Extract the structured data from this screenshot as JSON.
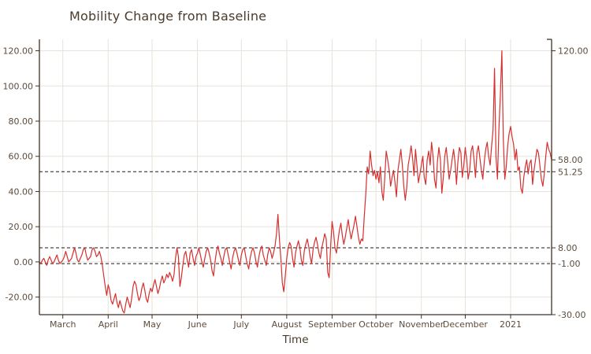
{
  "title": "Mobility Change from Baseline",
  "x_axis": {
    "label": "Time",
    "month_labels": [
      "March",
      "April",
      "May",
      "June",
      "July",
      "August",
      "September",
      "October",
      "November",
      "December",
      "2021"
    ]
  },
  "y_axis_left": {
    "ticks": [
      120,
      100,
      80,
      60,
      40,
      20,
      0,
      -20
    ],
    "labels": [
      "120.00",
      "100.00",
      "80.00",
      "60.00",
      "40.00",
      "20.00",
      "0.00",
      "-20.00"
    ]
  },
  "y_axis_right": {
    "annotations": [
      {
        "value": 120,
        "label": "120.00"
      },
      {
        "value": 58,
        "label": "58.00"
      },
      {
        "value": 51.25,
        "label": "51.25"
      },
      {
        "value": 8,
        "label": "8.00"
      },
      {
        "value": -1,
        "label": "-1.00"
      },
      {
        "value": -30,
        "label": "-30.00"
      }
    ]
  },
  "reference_lines": {
    "values": [
      51.25,
      8,
      -1
    ],
    "style": "dashed"
  },
  "colors": {
    "line": "#d62f2f",
    "grid": "#e7e2da",
    "axis": "#3e3226",
    "tick_text": "#5d4c3b",
    "title_text": "#4a3b2c",
    "dashed": "#1a1a1a"
  },
  "chart_data": {
    "type": "line",
    "title": "Mobility Change from Baseline",
    "xlabel": "Time",
    "ylabel": "",
    "x_start_date": "2020-02-14",
    "frequency": "daily",
    "ylim": [
      -30,
      126.5
    ],
    "grid": true,
    "legend": "none",
    "month_start_day_indices": [
      16,
      47,
      77,
      108,
      138,
      169,
      200,
      230,
      261,
      291,
      322
    ],
    "dashed_line_values": [
      51.25,
      8,
      -1
    ],
    "last_value": 58,
    "series": [
      {
        "name": "mobility_change_from_baseline",
        "values": [
          0,
          -1,
          1,
          2,
          0,
          -2,
          1,
          3,
          1,
          -1,
          0,
          2,
          4,
          1,
          -1,
          0,
          1,
          3,
          6,
          3,
          0,
          1,
          2,
          5,
          8,
          5,
          1,
          0,
          2,
          4,
          7,
          8,
          4,
          1,
          2,
          3,
          7,
          8,
          6,
          3,
          4,
          6,
          3,
          -2,
          -8,
          -14,
          -19,
          -13,
          -16,
          -22,
          -24,
          -21,
          -18,
          -23,
          -26,
          -22,
          -25,
          -28,
          -29,
          -24,
          -20,
          -23,
          -26,
          -21,
          -14,
          -11,
          -13,
          -18,
          -22,
          -20,
          -15,
          -12,
          -16,
          -21,
          -23,
          -18,
          -15,
          -17,
          -13,
          -10,
          -14,
          -18,
          -15,
          -11,
          -8,
          -12,
          -10,
          -7,
          -9,
          -6,
          -8,
          -11,
          -7,
          2,
          8,
          3,
          -14,
          -9,
          -2,
          4,
          6,
          1,
          -3,
          5,
          7,
          2,
          -2,
          3,
          5,
          8,
          4,
          0,
          -3,
          2,
          6,
          8,
          5,
          1,
          -5,
          -8,
          0,
          6,
          9,
          5,
          2,
          -2,
          3,
          7,
          8,
          4,
          0,
          -4,
          2,
          6,
          8,
          5,
          1,
          -2,
          4,
          7,
          8,
          3,
          -1,
          -4,
          2,
          6,
          8,
          5,
          0,
          -3,
          3,
          7,
          9,
          4,
          1,
          -2,
          4,
          8,
          6,
          2,
          5,
          9,
          16,
          27,
          13,
          2,
          -12,
          -17,
          -8,
          2,
          8,
          11,
          9,
          2,
          -3,
          5,
          9,
          12,
          8,
          1,
          -2,
          6,
          10,
          13,
          9,
          3,
          -1,
          7,
          11,
          14,
          10,
          5,
          2,
          8,
          12,
          16,
          13,
          -6,
          -9,
          9,
          23,
          17,
          8,
          5,
          12,
          18,
          22,
          15,
          10,
          14,
          19,
          24,
          18,
          13,
          17,
          21,
          26,
          20,
          14,
          10,
          13,
          12,
          26,
          38,
          54,
          50,
          63,
          55,
          49,
          52,
          47,
          51,
          45,
          54,
          40,
          35,
          48,
          63,
          58,
          52,
          43,
          48,
          52,
          45,
          37,
          52,
          58,
          64,
          55,
          43,
          35,
          42,
          55,
          60,
          66,
          59,
          49,
          64,
          55,
          45,
          50,
          55,
          60,
          48,
          44,
          58,
          63,
          55,
          68,
          60,
          47,
          42,
          57,
          65,
          58,
          39,
          48,
          60,
          65,
          57,
          47,
          52,
          58,
          64,
          57,
          44,
          57,
          65,
          62,
          48,
          55,
          65,
          58,
          47,
          52,
          63,
          66,
          58,
          48,
          62,
          66,
          59,
          52,
          47,
          57,
          64,
          68,
          60,
          55,
          66,
          75,
          110,
          60,
          47,
          75,
          95,
          120,
          70,
          47,
          54,
          66,
          73,
          77,
          71,
          67,
          58,
          64,
          52,
          54,
          42,
          39,
          48,
          54,
          58,
          50,
          56,
          58,
          44,
          52,
          58,
          64,
          62,
          55,
          47,
          43,
          50,
          60,
          68,
          64,
          62,
          58
        ]
      }
    ]
  }
}
